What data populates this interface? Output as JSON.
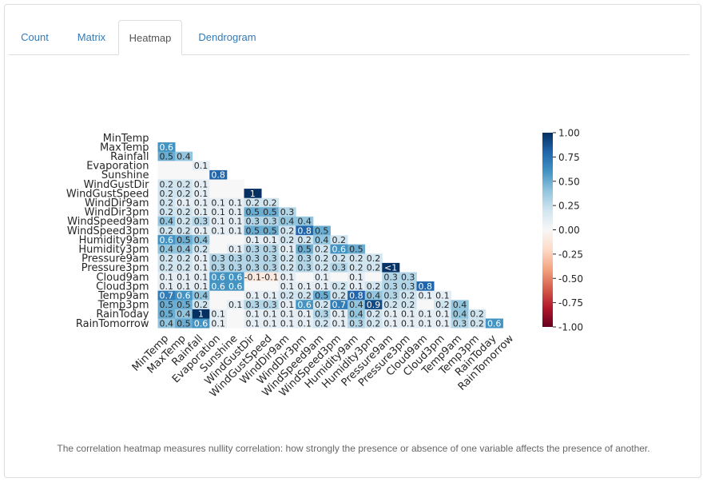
{
  "tabs": [
    {
      "label": "Count",
      "active": false
    },
    {
      "label": "Matrix",
      "active": false
    },
    {
      "label": "Heatmap",
      "active": true
    },
    {
      "label": "Dendrogram",
      "active": false
    }
  ],
  "caption": "The correlation heatmap measures nullity correlation: how strongly the presence or absence of one variable affects the presence of another.",
  "chart_data": {
    "type": "heatmap",
    "title": "",
    "variables": [
      "MinTemp",
      "MaxTemp",
      "Rainfall",
      "Evaporation",
      "Sunshine",
      "WindGustDir",
      "WindGustSpeed",
      "WindDir9am",
      "WindDir3pm",
      "WindSpeed9am",
      "WindSpeed3pm",
      "Humidity9am",
      "Humidity3pm",
      "Pressure9am",
      "Pressure3pm",
      "Cloud9am",
      "Cloud3pm",
      "Temp9am",
      "Temp3pm",
      "RainToday",
      "RainTomorrow"
    ],
    "lower_triangle": [
      [],
      [
        "0.6"
      ],
      [
        "0.5",
        "0.4"
      ],
      [
        "",
        "",
        "0.1"
      ],
      [
        "",
        "",
        "",
        "0.8"
      ],
      [
        "0.2",
        "0.2",
        "0.1",
        "",
        ""
      ],
      [
        "0.2",
        "0.2",
        "0.1",
        "",
        "",
        "1"
      ],
      [
        "0.2",
        "0.1",
        "0.1",
        "0.1",
        "0.1",
        "0.2",
        "0.2"
      ],
      [
        "0.2",
        "0.2",
        "0.1",
        "0.1",
        "0.1",
        "0.5",
        "0.5",
        "0.3"
      ],
      [
        "0.4",
        "0.2",
        "0.3",
        "0.1",
        "0.1",
        "0.3",
        "0.3",
        "0.4",
        "0.4"
      ],
      [
        "0.2",
        "0.2",
        "0.1",
        "0.1",
        "0.1",
        "0.5",
        "0.5",
        "0.2",
        "0.8",
        "0.5"
      ],
      [
        "0.6",
        "0.5",
        "0.4",
        "",
        "",
        "0.1",
        "0.1",
        "0.2",
        "0.2",
        "0.4",
        "0.2"
      ],
      [
        "0.4",
        "0.4",
        "0.2",
        "",
        "0.1",
        "0.3",
        "0.3",
        "0.1",
        "0.5",
        "0.2",
        "0.6",
        "0.5"
      ],
      [
        "0.2",
        "0.2",
        "0.1",
        "0.3",
        "0.3",
        "0.3",
        "0.3",
        "0.2",
        "0.3",
        "0.2",
        "0.2",
        "0.2",
        "0.2"
      ],
      [
        "0.2",
        "0.2",
        "0.1",
        "0.3",
        "0.3",
        "0.3",
        "0.3",
        "0.2",
        "0.3",
        "0.2",
        "0.3",
        "0.2",
        "0.2",
        "<1"
      ],
      [
        "0.1",
        "0.1",
        "0.1",
        "0.6",
        "0.6",
        "-0.1",
        "-0.1",
        "0.1",
        "",
        "0.1",
        "",
        "0.1",
        "",
        "0.3",
        "0.3"
      ],
      [
        "0.1",
        "0.1",
        "0.1",
        "0.6",
        "0.6",
        "",
        "",
        "0.1",
        "0.1",
        "0.1",
        "0.2",
        "0.1",
        "0.2",
        "0.3",
        "0.3",
        "0.8"
      ],
      [
        "0.7",
        "0.6",
        "0.4",
        "",
        "",
        "0.1",
        "0.1",
        "0.2",
        "0.2",
        "0.5",
        "0.2",
        "0.8",
        "0.4",
        "0.3",
        "0.2",
        "0.1",
        "0.1"
      ],
      [
        "0.5",
        "0.5",
        "0.2",
        "",
        "0.1",
        "0.3",
        "0.3",
        "0.1",
        "0.6",
        "0.2",
        "0.7",
        "0.4",
        "0.9",
        "0.2",
        "0.2",
        "",
        "0.2",
        "0.4"
      ],
      [
        "0.5",
        "0.4",
        "1",
        "0.1",
        "",
        "0.1",
        "0.1",
        "0.1",
        "0.1",
        "0.3",
        "0.1",
        "0.4",
        "0.2",
        "0.1",
        "0.1",
        "0.1",
        "0.1",
        "0.4",
        "0.2"
      ],
      [
        "0.4",
        "0.5",
        "0.6",
        "0.1",
        "",
        "0.1",
        "0.1",
        "0.1",
        "0.1",
        "0.2",
        "0.1",
        "0.3",
        "0.2",
        "0.1",
        "0.1",
        "0.1",
        "0.1",
        "0.3",
        "0.2",
        "0.6"
      ]
    ],
    "color_scale": {
      "min": -1.0,
      "max": 1.0,
      "colormap": "RdBu"
    },
    "colorbar_ticks": [
      "1.00",
      "0.75",
      "0.50",
      "0.25",
      "0.00",
      "-0.25",
      "-0.50",
      "-0.75",
      "-1.00"
    ],
    "colorbar_tick_values": [
      1.0,
      0.75,
      0.5,
      0.25,
      0.0,
      -0.25,
      -0.5,
      -0.75,
      -1.0
    ]
  }
}
